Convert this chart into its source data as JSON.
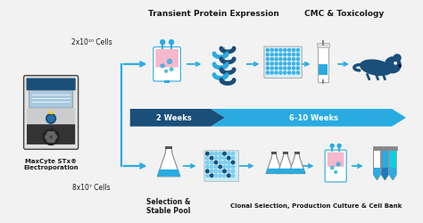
{
  "bg_color": "#f2f2f2",
  "arrow_dark_blue": "#1a4f7a",
  "arrow_light_blue": "#29abe2",
  "text_dark": "#1a1a1a",
  "title_top_left": "Transient Protein Expression",
  "title_top_right": "CMC & Toxicology",
  "label_weeks1": "2 Weeks",
  "label_weeks2": "6-10 Weeks",
  "label_device": "MaxCyte STx®\nElectroporation",
  "label_cells_top": "2x10¹⁰ Cells",
  "label_cells_bot": "8x10⁷ Cells",
  "label_bot_left": "Selection &\nStable Pool",
  "label_bot_right": "Clonal Selection, Production Culture & Cell Bank",
  "figsize": [
    4.74,
    2.51
  ],
  "dpi": 100
}
